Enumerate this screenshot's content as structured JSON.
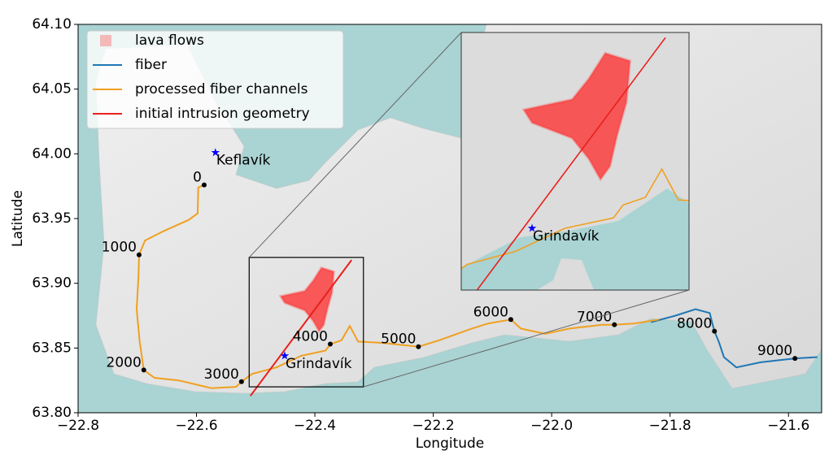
{
  "chart_data": {
    "type": "map",
    "xlabel": "Longitude",
    "ylabel": "Latitude",
    "xlim": [
      -22.8,
      -21.544
    ],
    "ylim": [
      63.8,
      64.1
    ],
    "xticks": [
      {
        "value": -22.8,
        "label": "−22.8"
      },
      {
        "value": -22.6,
        "label": "−22.6"
      },
      {
        "value": -22.4,
        "label": "−22.4"
      },
      {
        "value": -22.2,
        "label": "−22.2"
      },
      {
        "value": -22.0,
        "label": "−22.0"
      },
      {
        "value": -21.8,
        "label": "−21.8"
      },
      {
        "value": -21.6,
        "label": "−21.6"
      }
    ],
    "yticks": [
      {
        "value": 63.8,
        "label": "63.80"
      },
      {
        "value": 63.85,
        "label": "63.85"
      },
      {
        "value": 63.9,
        "label": "63.90"
      },
      {
        "value": 63.95,
        "label": "63.95"
      },
      {
        "value": 64.0,
        "label": "64.00"
      },
      {
        "value": 64.05,
        "label": "64.05"
      },
      {
        "value": 64.1,
        "label": "64.10"
      }
    ],
    "legend": "upper left",
    "series": [
      {
        "name": "lava flows",
        "color": "#ff2a2a",
        "kind": "area",
        "x": [
          -22.458,
          -22.417,
          -22.403,
          -22.389,
          -22.368,
          -22.371,
          -22.379,
          -22.385,
          -22.393,
          -22.403,
          -22.417,
          -22.451
        ],
        "y": [
          63.89,
          63.894,
          63.902,
          63.912,
          63.909,
          63.893,
          63.88,
          63.868,
          63.863,
          63.871,
          63.879,
          63.885
        ]
      },
      {
        "name": "fiber",
        "color": "#1f77b4",
        "kind": "line",
        "x": [
          -21.832,
          -21.791,
          -21.757,
          -21.733,
          -21.728,
          -21.725,
          -21.717,
          -21.709,
          -21.688,
          -21.647,
          -21.589,
          -21.551
        ],
        "y": [
          63.87,
          63.875,
          63.88,
          63.877,
          63.868,
          63.863,
          63.854,
          63.843,
          63.835,
          63.839,
          63.842,
          63.843
        ]
      },
      {
        "name": "processed fiber channels",
        "color": "#f0a020",
        "kind": "line",
        "x": [
          -22.587,
          -22.597,
          -22.598,
          -22.613,
          -22.657,
          -22.687,
          -22.697,
          -22.698,
          -22.701,
          -22.696,
          -22.689,
          -22.671,
          -22.63,
          -22.575,
          -22.533,
          -22.524,
          -22.506,
          -22.465,
          -22.423,
          -22.382,
          -22.374,
          -22.355,
          -22.341,
          -22.327,
          -22.286,
          -22.225,
          -22.19,
          -22.135,
          -22.107,
          -22.069,
          -22.052,
          -22.011,
          -21.97,
          -21.915,
          -21.894,
          -21.86,
          -21.819
        ],
        "y": [
          63.976,
          63.974,
          63.954,
          63.949,
          63.94,
          63.933,
          63.922,
          63.905,
          63.88,
          63.855,
          63.833,
          63.827,
          63.825,
          63.819,
          63.82,
          63.824,
          63.83,
          63.835,
          63.844,
          63.848,
          63.853,
          63.856,
          63.867,
          63.855,
          63.854,
          63.851,
          63.856,
          63.865,
          63.869,
          63.872,
          63.865,
          63.861,
          63.865,
          63.868,
          63.868,
          63.869,
          63.872
        ]
      },
      {
        "name": "initial intrusion geometry",
        "color": "#e8201c",
        "kind": "line",
        "x": [
          -22.509,
          -22.338
        ],
        "y": [
          63.813,
          63.918
        ]
      }
    ],
    "channels": {
      "x": [
        -22.587,
        -22.697,
        -22.689,
        -22.524,
        -22.374,
        -22.225,
        -22.069,
        -21.894,
        -21.725,
        -21.589
      ],
      "y": [
        63.976,
        63.922,
        63.833,
        63.824,
        63.853,
        63.851,
        63.872,
        63.868,
        63.863,
        63.842
      ],
      "labels": [
        0,
        1000,
        2000,
        3000,
        4000,
        5000,
        6000,
        7000,
        8000,
        9000
      ]
    },
    "places": [
      {
        "name": "Keflavík",
        "x": -22.568,
        "y": 64.001,
        "color": "#0000ff"
      },
      {
        "name": "Grindavík",
        "x": -22.451,
        "y": 63.844,
        "color": "#0000ff"
      }
    ],
    "inset": {
      "xlim": [
        -22.511,
        -22.318
      ],
      "ylim": [
        63.82,
        63.92
      ]
    }
  }
}
